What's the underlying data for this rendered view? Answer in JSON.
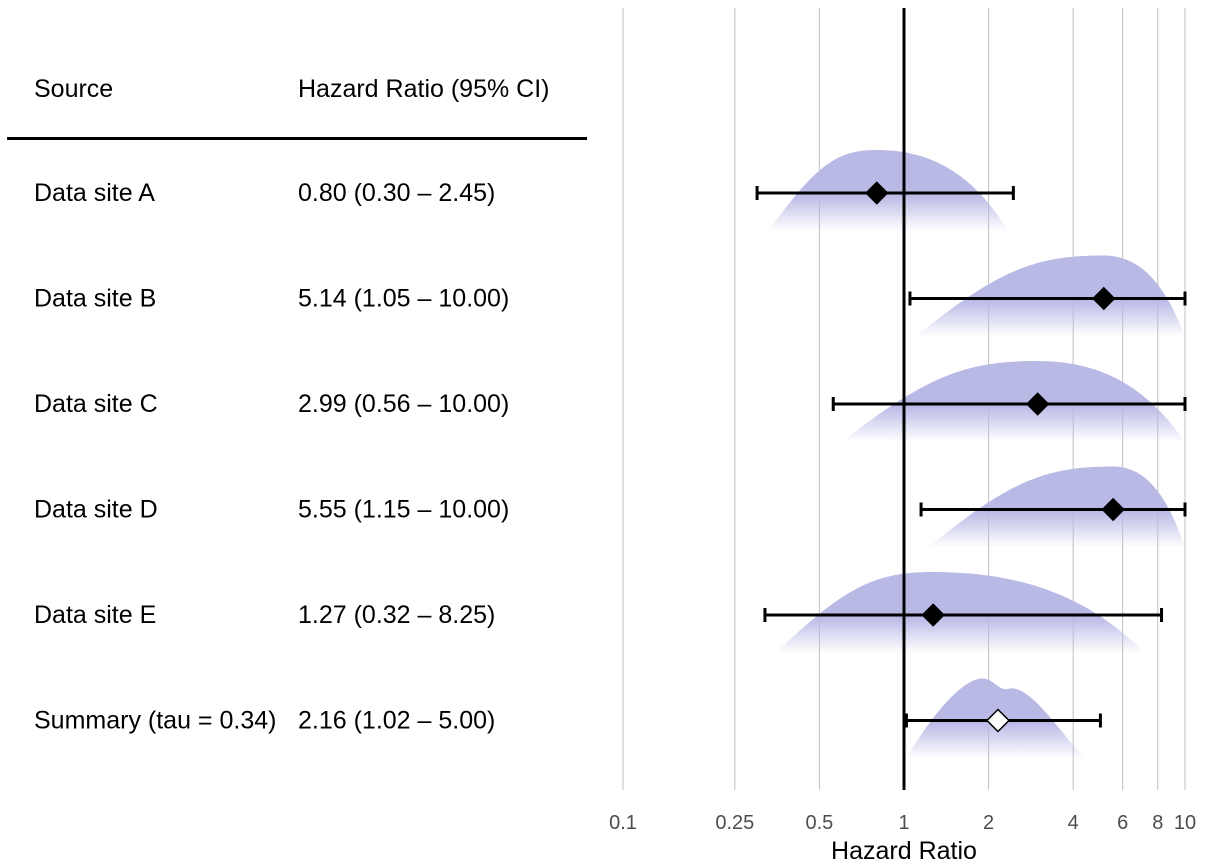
{
  "chart_data": {
    "type": "forest",
    "table": {
      "headers": [
        "Source",
        "Hazard Ratio (95% CI)"
      ],
      "rows": [
        {
          "source": "Data site A",
          "ci_text": "0.80 (0.30 – 2.45)",
          "hr": 0.8,
          "lo": 0.3,
          "hi": 2.45,
          "summary": false
        },
        {
          "source": "Data site B",
          "ci_text": "5.14 (1.05 – 10.00)",
          "hr": 5.14,
          "lo": 1.05,
          "hi": 10.0,
          "summary": false
        },
        {
          "source": "Data site C",
          "ci_text": "2.99 (0.56 – 10.00)",
          "hr": 2.99,
          "lo": 0.56,
          "hi": 10.0,
          "summary": false
        },
        {
          "source": "Data site D",
          "ci_text": "5.55 (1.15 – 10.00)",
          "hr": 5.55,
          "lo": 1.15,
          "hi": 10.0,
          "summary": false
        },
        {
          "source": "Data site E",
          "ci_text": "1.27 (0.32 – 8.25)",
          "hr": 1.27,
          "lo": 0.32,
          "hi": 8.25,
          "summary": false
        },
        {
          "source": "Summary (tau = 0.34)",
          "ci_text": "2.16 (1.02 – 5.00)",
          "hr": 2.16,
          "lo": 1.02,
          "hi": 5.0,
          "summary": true
        }
      ]
    },
    "x_axis": {
      "label": "Hazard Ratio",
      "scale": "log",
      "range": [
        0.1,
        10
      ],
      "ticks": [
        0.1,
        0.25,
        0.5,
        1,
        2,
        4,
        6,
        8,
        10
      ],
      "tick_labels": [
        "0.1",
        "0.25",
        "0.5",
        "1",
        "2",
        "4",
        "6",
        "8",
        "10"
      ]
    },
    "reference_line": 1,
    "distributions": [
      {
        "row": 0,
        "x": [
          0.33,
          0.8,
          2.35
        ],
        "ends": "fade"
      },
      {
        "row": 1,
        "x": [
          1.1,
          5.14,
          10
        ],
        "ends": "fade-left"
      },
      {
        "row": 2,
        "x": [
          0.6,
          2.99,
          10
        ],
        "ends": "fade-left"
      },
      {
        "row": 3,
        "x": [
          1.22,
          5.55,
          10
        ],
        "ends": "fade-left"
      },
      {
        "row": 4,
        "x": [
          0.35,
          1.27,
          7.2
        ],
        "ends": "fade"
      },
      {
        "row": 5,
        "x": [
          1.02,
          1.9,
          2.5,
          4.4
        ],
        "ends": "fade",
        "bimodal": true
      }
    ],
    "grid": true,
    "colors": {
      "distribution": "#b9b9e6",
      "marker": "#000000",
      "summary_marker_fill": "#ffffff",
      "gridline": "#bfbfbf",
      "tick_text": "#4d4d4d"
    }
  }
}
